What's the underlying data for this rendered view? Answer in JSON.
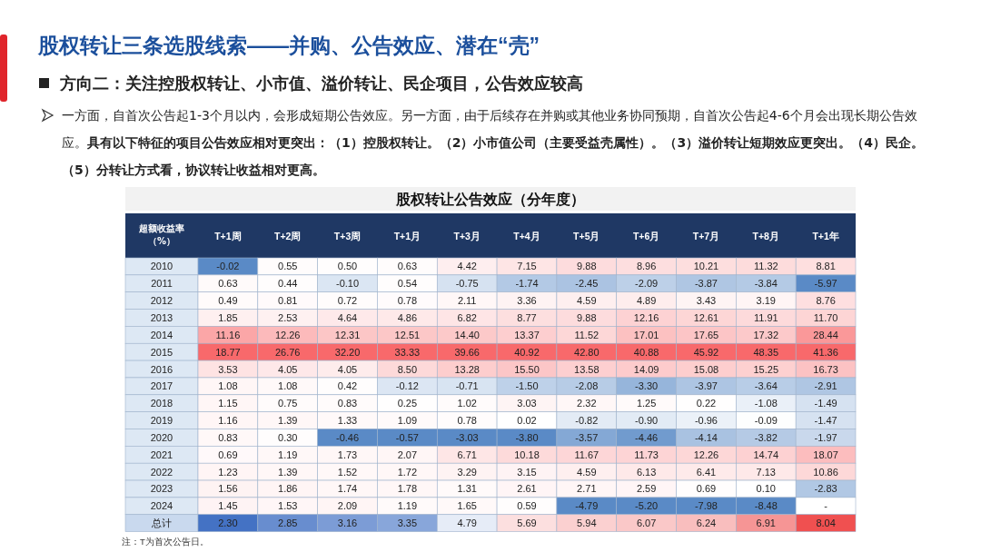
{
  "chart_data": {
    "type": "heatmap",
    "title": "股权转让公告效应（分年度）",
    "annotations": [
      "股权转让三条选股线索——并购、公告效应、潜在“壳”",
      "方向二：关注控股权转让、小市值、溢价转让、民企项目，公告效应较高",
      "一方面，自首次公告起1-3个月以内，会形成短期公告效应。另一方面，由于后续存在并购或其他业务协同预期，自首次公告起4-6个月会出现长期公告效应。**具有以下特征的项目公告效应相对更突出：（1）控股权转让。（2）小市值公司（主要受益壳属性）。（3）溢价转让短期效应更突出。（4）民企。（5）分转让方式看，协议转让收益相对更高。**",
      "超额收益率（%）",
      "注：T为首次公告日。"
    ],
    "categories": [
      "T+1周",
      "T+2周",
      "T+3周",
      "T+1月",
      "T+3月",
      "T+4月",
      "T+5月",
      "T+6月",
      "T+7月",
      "T+8月",
      "T+1年"
    ],
    "y_categories": [
      "2010",
      "2011",
      "2012",
      "2013",
      "2014",
      "2015",
      "2016",
      "2017",
      "2018",
      "2019",
      "2020",
      "2021",
      "2022",
      "2023",
      "2024",
      "总计"
    ],
    "cells": [
      [
        -0.02,
        0.55,
        0.5,
        0.63,
        4.42,
        7.15,
        9.88,
        8.96,
        10.21,
        11.32,
        8.81
      ],
      [
        0.63,
        0.44,
        -0.1,
        0.54,
        -0.75,
        -1.74,
        -2.45,
        -2.09,
        -3.87,
        -3.84,
        -5.97
      ],
      [
        0.49,
        0.81,
        0.72,
        0.78,
        2.11,
        3.36,
        4.59,
        4.89,
        3.43,
        3.19,
        8.76
      ],
      [
        1.85,
        2.53,
        4.64,
        4.86,
        6.82,
        8.77,
        9.88,
        12.16,
        12.61,
        11.91,
        11.7
      ],
      [
        11.16,
        12.26,
        12.31,
        12.51,
        14.4,
        13.37,
        11.52,
        17.01,
        17.65,
        17.32,
        28.44
      ],
      [
        18.77,
        26.76,
        32.2,
        33.33,
        39.66,
        40.92,
        42.8,
        40.88,
        45.92,
        48.35,
        41.36
      ],
      [
        3.53,
        4.05,
        4.05,
        8.5,
        13.28,
        15.5,
        13.58,
        14.09,
        15.08,
        15.25,
        16.73
      ],
      [
        1.08,
        1.08,
        0.42,
        -0.12,
        -0.71,
        -1.5,
        -2.08,
        -3.3,
        -3.97,
        -3.64,
        -2.91
      ],
      [
        1.15,
        0.75,
        0.83,
        0.25,
        1.02,
        3.03,
        2.32,
        1.25,
        0.22,
        -1.08,
        -1.49
      ],
      [
        1.16,
        1.39,
        1.33,
        1.09,
        0.78,
        0.02,
        -0.82,
        -0.9,
        -0.96,
        -0.09,
        -1.47
      ],
      [
        0.83,
        0.3,
        -0.46,
        -0.57,
        -3.03,
        -3.8,
        -3.57,
        -4.46,
        -4.14,
        -3.82,
        -1.97
      ],
      [
        0.69,
        1.19,
        1.73,
        2.07,
        6.71,
        10.18,
        11.67,
        11.73,
        12.26,
        14.74,
        18.07
      ],
      [
        1.23,
        1.39,
        1.52,
        1.72,
        3.29,
        3.15,
        4.59,
        6.13,
        6.41,
        7.13,
        10.86
      ],
      [
        1.56,
        1.86,
        1.74,
        1.78,
        1.31,
        2.61,
        2.71,
        2.59,
        0.69,
        0.1,
        -2.83
      ],
      [
        1.45,
        1.53,
        2.09,
        1.19,
        1.65,
        0.59,
        -4.79,
        -5.2,
        -7.98,
        -8.48,
        null
      ],
      [
        2.3,
        2.85,
        3.16,
        3.35,
        4.79,
        5.69,
        5.94,
        6.07,
        6.24,
        6.91,
        8.04
      ]
    ],
    "cell_labels": [
      [
        "-0.02",
        "0.55",
        "0.50",
        "0.63",
        "4.42",
        "7.15",
        "9.88",
        "8.96",
        "10.21",
        "11.32",
        "8.81"
      ],
      [
        "0.63",
        "0.44",
        "-0.10",
        "0.54",
        "-0.75",
        "-1.74",
        "-2.45",
        "-2.09",
        "-3.87",
        "-3.84",
        "-5.97"
      ],
      [
        "0.49",
        "0.81",
        "0.72",
        "0.78",
        "2.11",
        "3.36",
        "4.59",
        "4.89",
        "3.43",
        "3.19",
        "8.76"
      ],
      [
        "1.85",
        "2.53",
        "4.64",
        "4.86",
        "6.82",
        "8.77",
        "9.88",
        "12.16",
        "12.61",
        "11.91",
        "11.70"
      ],
      [
        "11.16",
        "12.26",
        "12.31",
        "12.51",
        "14.40",
        "13.37",
        "11.52",
        "17.01",
        "17.65",
        "17.32",
        "28.44"
      ],
      [
        "18.77",
        "26.76",
        "32.20",
        "33.33",
        "39.66",
        "40.92",
        "42.80",
        "40.88",
        "45.92",
        "48.35",
        "41.36"
      ],
      [
        "3.53",
        "4.05",
        "4.05",
        "8.50",
        "13.28",
        "15.50",
        "13.58",
        "14.09",
        "15.08",
        "15.25",
        "16.73"
      ],
      [
        "1.08",
        "1.08",
        "0.42",
        "-0.12",
        "-0.71",
        "-1.50",
        "-2.08",
        "-3.30",
        "-3.97",
        "-3.64",
        "-2.91"
      ],
      [
        "1.15",
        "0.75",
        "0.83",
        "0.25",
        "1.02",
        "3.03",
        "2.32",
        "1.25",
        "0.22",
        "-1.08",
        "-1.49"
      ],
      [
        "1.16",
        "1.39",
        "1.33",
        "1.09",
        "0.78",
        "0.02",
        "-0.82",
        "-0.90",
        "-0.96",
        "-0.09",
        "-1.47"
      ],
      [
        "0.83",
        "0.30",
        "-0.46",
        "-0.57",
        "-3.03",
        "-3.80",
        "-3.57",
        "-4.46",
        "-4.14",
        "-3.82",
        "-1.97"
      ],
      [
        "0.69",
        "1.19",
        "1.73",
        "2.07",
        "6.71",
        "10.18",
        "11.67",
        "11.73",
        "12.26",
        "14.74",
        "18.07"
      ],
      [
        "1.23",
        "1.39",
        "1.52",
        "1.72",
        "3.29",
        "3.15",
        "4.59",
        "6.13",
        "6.41",
        "7.13",
        "10.86"
      ],
      [
        "1.56",
        "1.86",
        "1.74",
        "1.78",
        "1.31",
        "2.61",
        "2.71",
        "2.59",
        "0.69",
        "0.10",
        "-2.83"
      ],
      [
        "1.45",
        "1.53",
        "2.09",
        "1.19",
        "1.65",
        "0.59",
        "-4.79",
        "-5.20",
        "-7.98",
        "-8.48",
        "-"
      ],
      [
        "2.30",
        "2.85",
        "3.16",
        "3.35",
        "4.79",
        "5.69",
        "5.94",
        "6.07",
        "6.24",
        "6.91",
        "8.04"
      ]
    ]
  }
}
